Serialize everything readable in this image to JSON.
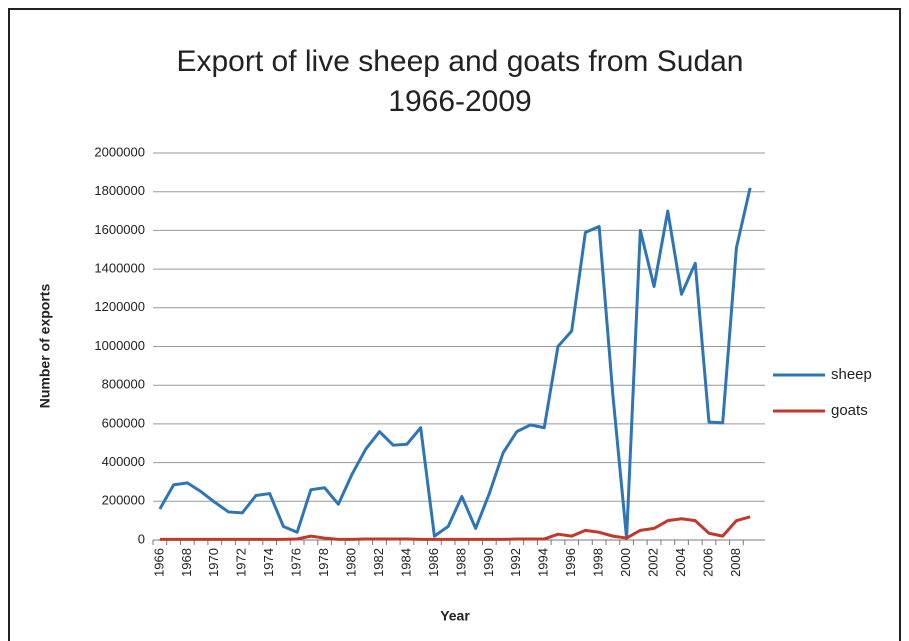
{
  "chart_data": {
    "type": "line",
    "title": [
      "Export of live sheep and goats from Sudan",
      "1966-2009"
    ],
    "x_label": "Year",
    "y_label": "Number of exports",
    "categories": [
      "1966",
      null,
      "1968",
      null,
      "1970",
      null,
      "1972",
      null,
      "1974",
      null,
      "1976",
      null,
      "1978",
      null,
      "1980",
      null,
      "1982",
      null,
      "1984",
      null,
      "1986",
      null,
      "1988",
      null,
      "1990",
      null,
      "1992",
      null,
      "1994",
      null,
      "1996",
      null,
      "1998",
      null,
      "2000",
      null,
      "2002",
      null,
      "2004",
      null,
      "2006",
      null,
      "2008",
      null
    ],
    "series": [
      {
        "name": "sheep",
        "color": "#2e75b6",
        "values": [
          160000,
          285000,
          295000,
          250000,
          195000,
          145000,
          140000,
          230000,
          240000,
          70000,
          40000,
          260000,
          270000,
          185000,
          340000,
          470000,
          560000,
          490000,
          495000,
          580000,
          20000,
          70000,
          225000,
          60000,
          240000,
          450000,
          560000,
          595000,
          580000,
          1000000,
          1080000,
          1590000,
          1620000,
          750000,
          10000,
          1600000,
          1310000,
          1700000,
          1270000,
          1430000,
          610000,
          605000,
          1510000,
          1820000
        ]
      },
      {
        "name": "goats",
        "color": "#c0392b",
        "values": [
          3000,
          3000,
          3000,
          3000,
          3000,
          3000,
          3000,
          3000,
          3000,
          3000,
          5000,
          20000,
          10000,
          3000,
          3000,
          5000,
          5000,
          5000,
          5000,
          3000,
          3000,
          3000,
          3000,
          3000,
          3000,
          3000,
          5000,
          5000,
          5000,
          30000,
          20000,
          50000,
          40000,
          20000,
          10000,
          50000,
          60000,
          100000,
          110000,
          100000,
          35000,
          20000,
          100000,
          120000
        ]
      }
    ],
    "ylim": [
      0,
      2000000
    ],
    "yticks": [
      0,
      200000,
      400000,
      600000,
      800000,
      1000000,
      1200000,
      1400000,
      1600000,
      1800000,
      2000000
    ],
    "grid": true,
    "legend": "right"
  }
}
